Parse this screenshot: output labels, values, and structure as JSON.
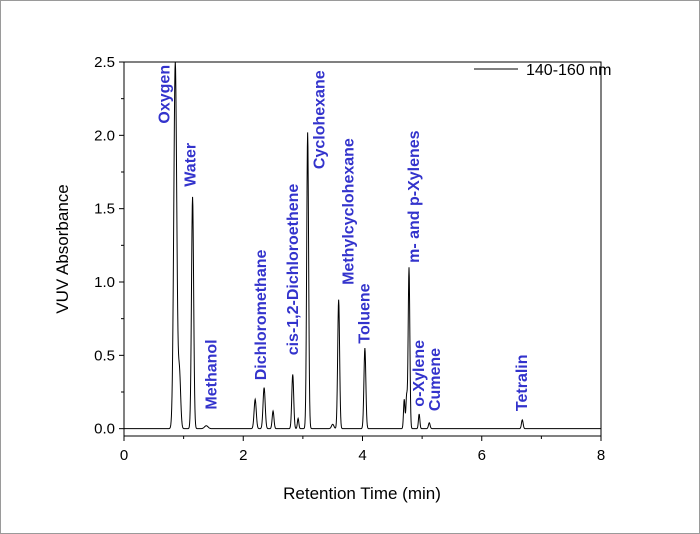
{
  "chart_data": {
    "type": "line",
    "xlabel": "Retention Time (min)",
    "ylabel": "VUV Absorbance",
    "xlim": [
      0,
      8
    ],
    "ylim": [
      -0.05,
      2.5
    ],
    "x_ticks": [
      "0",
      "2",
      "4",
      "6",
      "8"
    ],
    "y_ticks": [
      "0.0",
      "0.5",
      "1.0",
      "1.5",
      "2.0",
      "2.5"
    ],
    "legend": {
      "position": "top-right",
      "label": "140-160 nm"
    },
    "line_color": "#000000",
    "label_color": "#3333cc",
    "series": [
      {
        "name": "140-160 nm",
        "peaks": [
          {
            "x": 0.86,
            "y": 2.5,
            "w": 0.025
          },
          {
            "x": 0.93,
            "y": 0.38,
            "w": 0.02
          },
          {
            "x": 1.15,
            "y": 1.58,
            "w": 0.018
          },
          {
            "x": 1.38,
            "y": 0.02,
            "w": 0.03
          },
          {
            "x": 2.2,
            "y": 0.2,
            "w": 0.018
          },
          {
            "x": 2.35,
            "y": 0.28,
            "w": 0.018
          },
          {
            "x": 2.5,
            "y": 0.12,
            "w": 0.015
          },
          {
            "x": 2.83,
            "y": 0.37,
            "w": 0.016
          },
          {
            "x": 2.92,
            "y": 0.07,
            "w": 0.012
          },
          {
            "x": 3.08,
            "y": 2.02,
            "w": 0.016
          },
          {
            "x": 3.5,
            "y": 0.03,
            "w": 0.02
          },
          {
            "x": 3.6,
            "y": 0.88,
            "w": 0.016
          },
          {
            "x": 4.04,
            "y": 0.55,
            "w": 0.016
          },
          {
            "x": 4.7,
            "y": 0.2,
            "w": 0.012
          },
          {
            "x": 4.74,
            "y": 0.22,
            "w": 0.012
          },
          {
            "x": 4.78,
            "y": 1.1,
            "w": 0.014
          },
          {
            "x": 4.95,
            "y": 0.1,
            "w": 0.012
          },
          {
            "x": 5.12,
            "y": 0.04,
            "w": 0.014
          },
          {
            "x": 6.68,
            "y": 0.06,
            "w": 0.014
          }
        ]
      }
    ],
    "annotations": [
      {
        "text": "Oxygen",
        "x": 0.76,
        "y": 2.08
      },
      {
        "text": "Water",
        "x": 1.2,
        "y": 1.65
      },
      {
        "text": "Methanol",
        "x": 1.55,
        "y": 0.13
      },
      {
        "text": "Dichloromethane",
        "x": 2.38,
        "y": 0.33
      },
      {
        "text": "cis-1,2-Dichloroethene",
        "x": 2.92,
        "y": 0.5
      },
      {
        "text": "Cyclohexane",
        "x": 3.36,
        "y": 1.77
      },
      {
        "text": "Methylcyclohexane",
        "x": 3.85,
        "y": 0.98
      },
      {
        "text": "Toluene",
        "x": 4.12,
        "y": 0.58
      },
      {
        "text": "m- and p-Xylenes",
        "x": 4.95,
        "y": 1.13
      },
      {
        "text": "o-Xylene",
        "x": 5.03,
        "y": 0.15
      },
      {
        "text": "Cumene",
        "x": 5.3,
        "y": 0.12
      },
      {
        "text": "Tetralin",
        "x": 6.76,
        "y": 0.12
      }
    ]
  }
}
